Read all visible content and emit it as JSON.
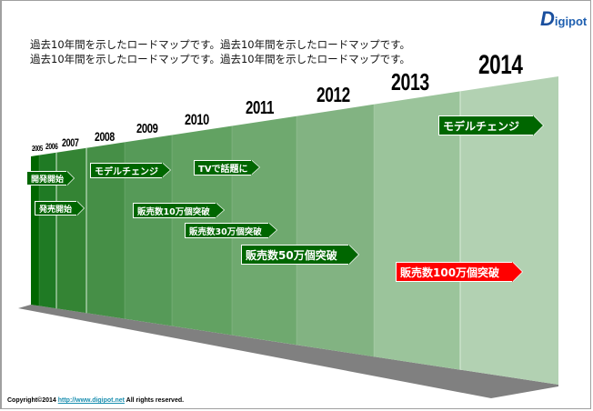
{
  "intro_lines": [
    "過去10年間を示したロードマップです。過去10年間を示したロードマップです。",
    "過去10年間を示したロードマップです。過去10年間を示したロードマップです。"
  ],
  "logo": {
    "text": "Digipot",
    "color": "#1a4f9e"
  },
  "years": [
    "2005",
    "2006",
    "2007",
    "2008",
    "2009",
    "2010",
    "2011",
    "2012",
    "2013",
    "2014"
  ],
  "column_colors": [
    "#006600",
    "#1f7a24",
    "#348434",
    "#468f47",
    "#569a58",
    "#62a262",
    "#6fa96f",
    "#82b382",
    "#9bc49b",
    "#b2d1b2"
  ],
  "events": [
    {
      "label": "開発開始",
      "color": "#006600"
    },
    {
      "label": "発売開始",
      "color": "#006600"
    },
    {
      "label": "モデルチェンジ",
      "color": "#006600"
    },
    {
      "label": "TVで話題に",
      "color": "#006600"
    },
    {
      "label": "販売数10万個突破",
      "color": "#006600"
    },
    {
      "label": "販売数30万個突破",
      "color": "#006600"
    },
    {
      "label": "販売数50万個突破",
      "color": "#006600"
    },
    {
      "label": "モデルチェンジ",
      "color": "#006600"
    },
    {
      "label": "販売数100万個突破",
      "color": "#ff0000"
    }
  ],
  "footer": {
    "prefix": "Copyright©2014 ",
    "link": "http://www.digipot.net",
    "suffix": " All rights reserved."
  }
}
